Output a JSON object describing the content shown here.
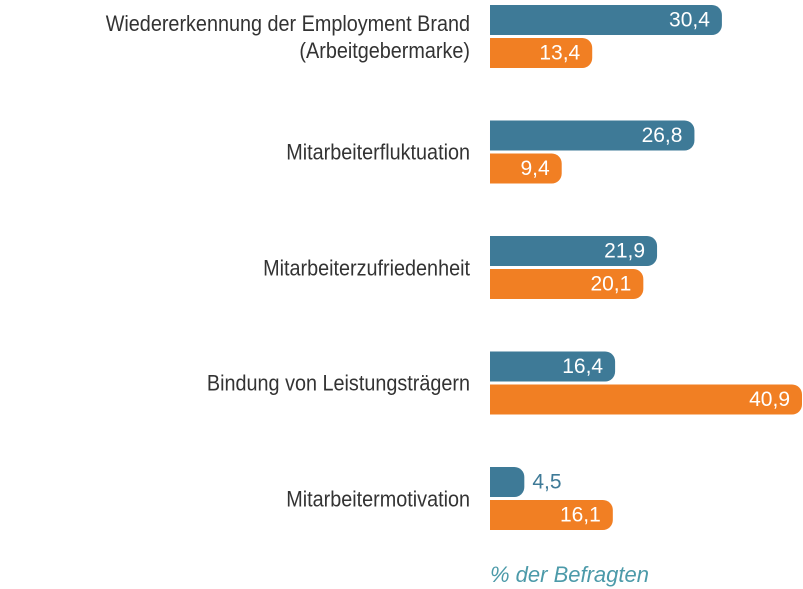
{
  "chart_data": {
    "type": "bar",
    "orientation": "horizontal",
    "categories": [
      "Wiedererkennung der Employment Brand\n(Arbeitgebermarke)",
      "Mitarbeiterfluktuation",
      "Mitarbeiterzufriedenheit",
      "Bindung von Leistungsträgern",
      "Mitarbeitermotivation"
    ],
    "series": [
      {
        "color": "#3e7a97",
        "values": [
          30.4,
          26.8,
          21.9,
          16.4,
          4.5
        ],
        "value_labels": [
          "30,4",
          "26,8",
          "21,9",
          "16,4",
          "4,5"
        ]
      },
      {
        "color": "#f17f23",
        "values": [
          13.4,
          9.4,
          20.1,
          40.9,
          16.1
        ],
        "value_labels": [
          "13,4",
          "9,4",
          "20,1",
          "40,9",
          "16,1"
        ]
      }
    ],
    "note": "% der Befragten"
  }
}
